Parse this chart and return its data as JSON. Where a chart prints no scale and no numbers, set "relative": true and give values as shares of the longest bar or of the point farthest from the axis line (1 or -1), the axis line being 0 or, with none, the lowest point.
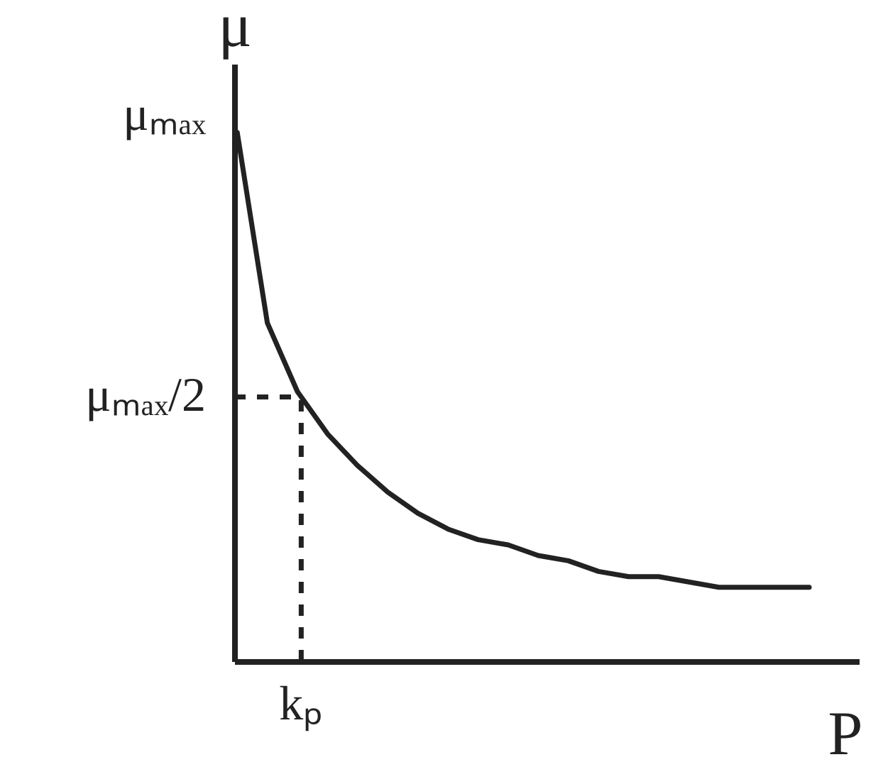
{
  "chart_data": {
    "type": "line",
    "xlabel": "P",
    "ylabel": "μ",
    "relative": true,
    "categories": [
      null,
      null,
      null,
      null,
      null,
      null,
      null,
      null,
      null,
      null,
      null,
      null,
      null,
      null,
      null,
      null,
      null,
      null,
      null,
      null
    ],
    "series": [
      {
        "color": "#222222",
        "values": [
          1,
          0.64,
          0.51,
          0.43,
          0.37,
          0.32,
          0.28,
          0.25,
          0.23,
          0.22,
          0.2,
          0.19,
          0.17,
          0.16,
          0.16,
          0.15,
          0.14,
          0.14,
          0.14,
          0.14
        ]
      }
    ],
    "annotations": [
      "μₘₐₓ",
      "kₚ"
    ],
    "ref_lines": [
      {
        "axis": "y",
        "value": 0.5,
        "label": "μₘₐₓ/2",
        "line_style": "dashed",
        "color": "#222222"
      }
    ]
  }
}
